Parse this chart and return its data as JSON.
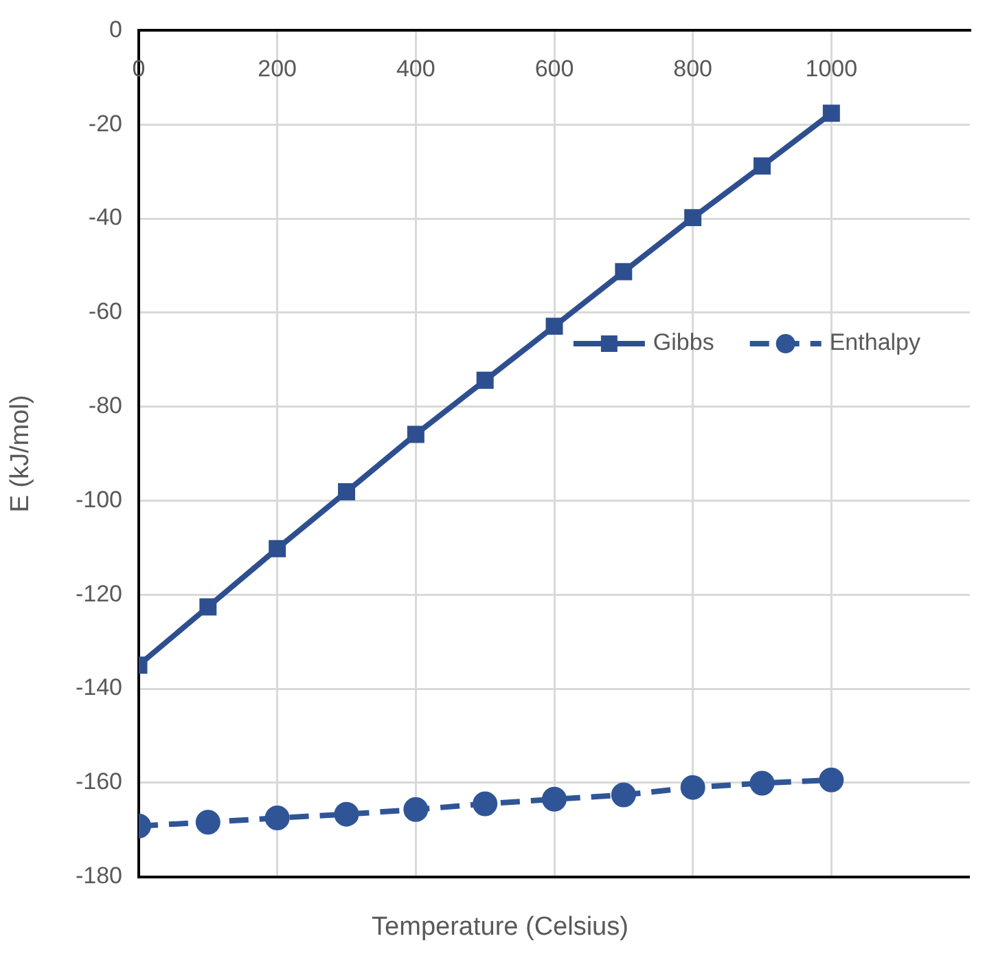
{
  "chart_data": {
    "type": "line",
    "xlabel": "Temperature (Celsius)",
    "ylabel": "E (kJ/mol)",
    "x": [
      0,
      100,
      200,
      300,
      400,
      500,
      600,
      700,
      800,
      900,
      1000
    ],
    "series": [
      {
        "name": "Gibbs",
        "color": "#2e4f8f",
        "marker": "square",
        "line_style": "solid",
        "values": [
          -135.0,
          -122.6,
          -110.2,
          -98.1,
          -85.9,
          -74.4,
          -62.9,
          -51.3,
          -39.8,
          -28.8,
          -17.6
        ]
      },
      {
        "name": "Enthalpy",
        "color": "#2f5597",
        "marker": "circle",
        "line_style": "dashed",
        "values": [
          -169.2,
          -168.4,
          -167.5,
          -166.7,
          -165.7,
          -164.5,
          -163.5,
          -162.6,
          -161.0,
          -160.1,
          -159.4
        ]
      }
    ],
    "xlim": [
      0,
      1200
    ],
    "xticks": [
      0,
      200,
      400,
      600,
      800,
      1000
    ],
    "ylim": [
      -180,
      0
    ],
    "yticks": [
      -180,
      -160,
      -140,
      -120,
      -100,
      -80,
      -60,
      -40,
      -20,
      0
    ],
    "grid": true,
    "legend": "right"
  }
}
